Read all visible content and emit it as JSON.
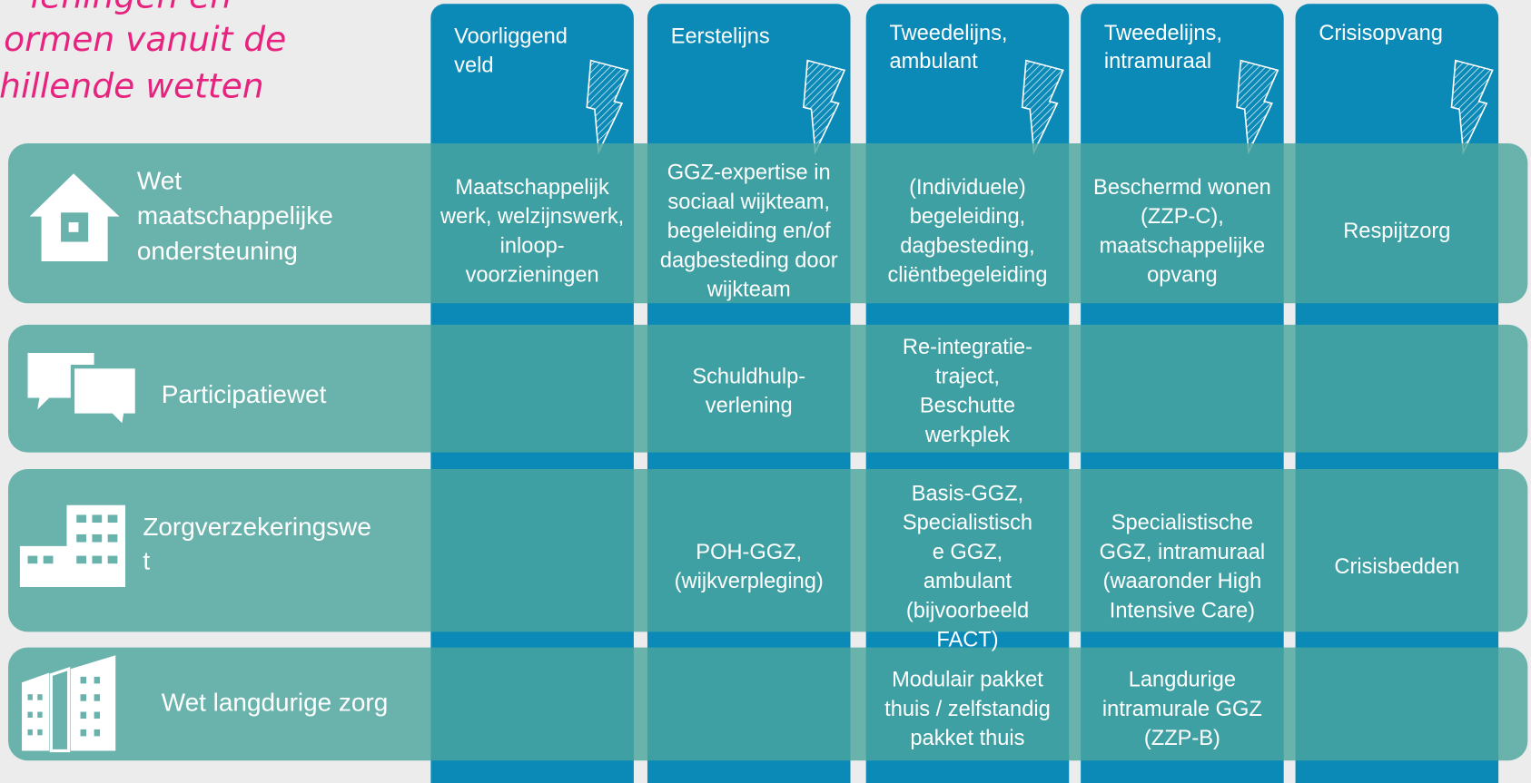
{
  "title": {
    "lines": [
      "ieningen en",
      "ormen vanuit de",
      "hillende wetten"
    ]
  },
  "columns": [
    {
      "lines": [
        "Voorliggend",
        "veld"
      ]
    },
    {
      "lines": [
        "Eerstelijns"
      ]
    },
    {
      "lines": [
        "Tweedelijns,",
        "ambulant"
      ]
    },
    {
      "lines": [
        "Tweedelijns,",
        "intramuraal"
      ]
    },
    {
      "lines": [
        "Crisisopvang"
      ]
    }
  ],
  "rows": [
    {
      "law": [
        "Wet",
        "maatschappelijke",
        "ondersteuning"
      ],
      "cells": [
        [
          "Maatschappelijk",
          "werk, welzijnswerk,",
          "inloop-",
          "voorzieningen"
        ],
        [
          "GGZ-expertise in",
          "sociaal wijkteam,",
          "begeleiding en/of",
          "dagbesteding door",
          "wijkteam"
        ],
        [
          "(Individuele)",
          "begeleiding,",
          "dagbesteding,",
          "cliëntbegeleiding"
        ],
        [
          "Beschermd wonen",
          "(ZZP-C),",
          "maatschappelijke",
          "opvang"
        ],
        [
          "Respijtzorg"
        ]
      ]
    },
    {
      "law": [
        "Participatiewet"
      ],
      "cells": [
        null,
        [
          "Schuldhulp-",
          "verlening"
        ],
        [
          "Re-integratie-",
          "traject,",
          "Beschutte",
          "werkplek"
        ],
        null,
        null
      ]
    },
    {
      "law": [
        "Zorgverzekeringswe",
        "t"
      ],
      "cells": [
        null,
        [
          "POH-GGZ,",
          "(wijkverpleging)"
        ],
        [
          "Basis-GGZ,",
          "Specialistisch",
          "e GGZ,",
          "ambulant",
          "(bijvoorbeeld",
          "FACT)"
        ],
        [
          "Specialistische",
          "GGZ, intramuraal",
          "(waaronder High",
          "Intensive Care)"
        ],
        [
          "Crisisbedden"
        ]
      ]
    },
    {
      "law": [
        "Wet langdurige zorg"
      ],
      "cells": [
        null,
        null,
        [
          "Modulair pakket",
          "thuis / zelfstandig",
          "pakket thuis"
        ],
        [
          "Langdurige",
          "intramurale GGZ",
          "(ZZP-B)"
        ],
        null
      ]
    }
  ]
}
